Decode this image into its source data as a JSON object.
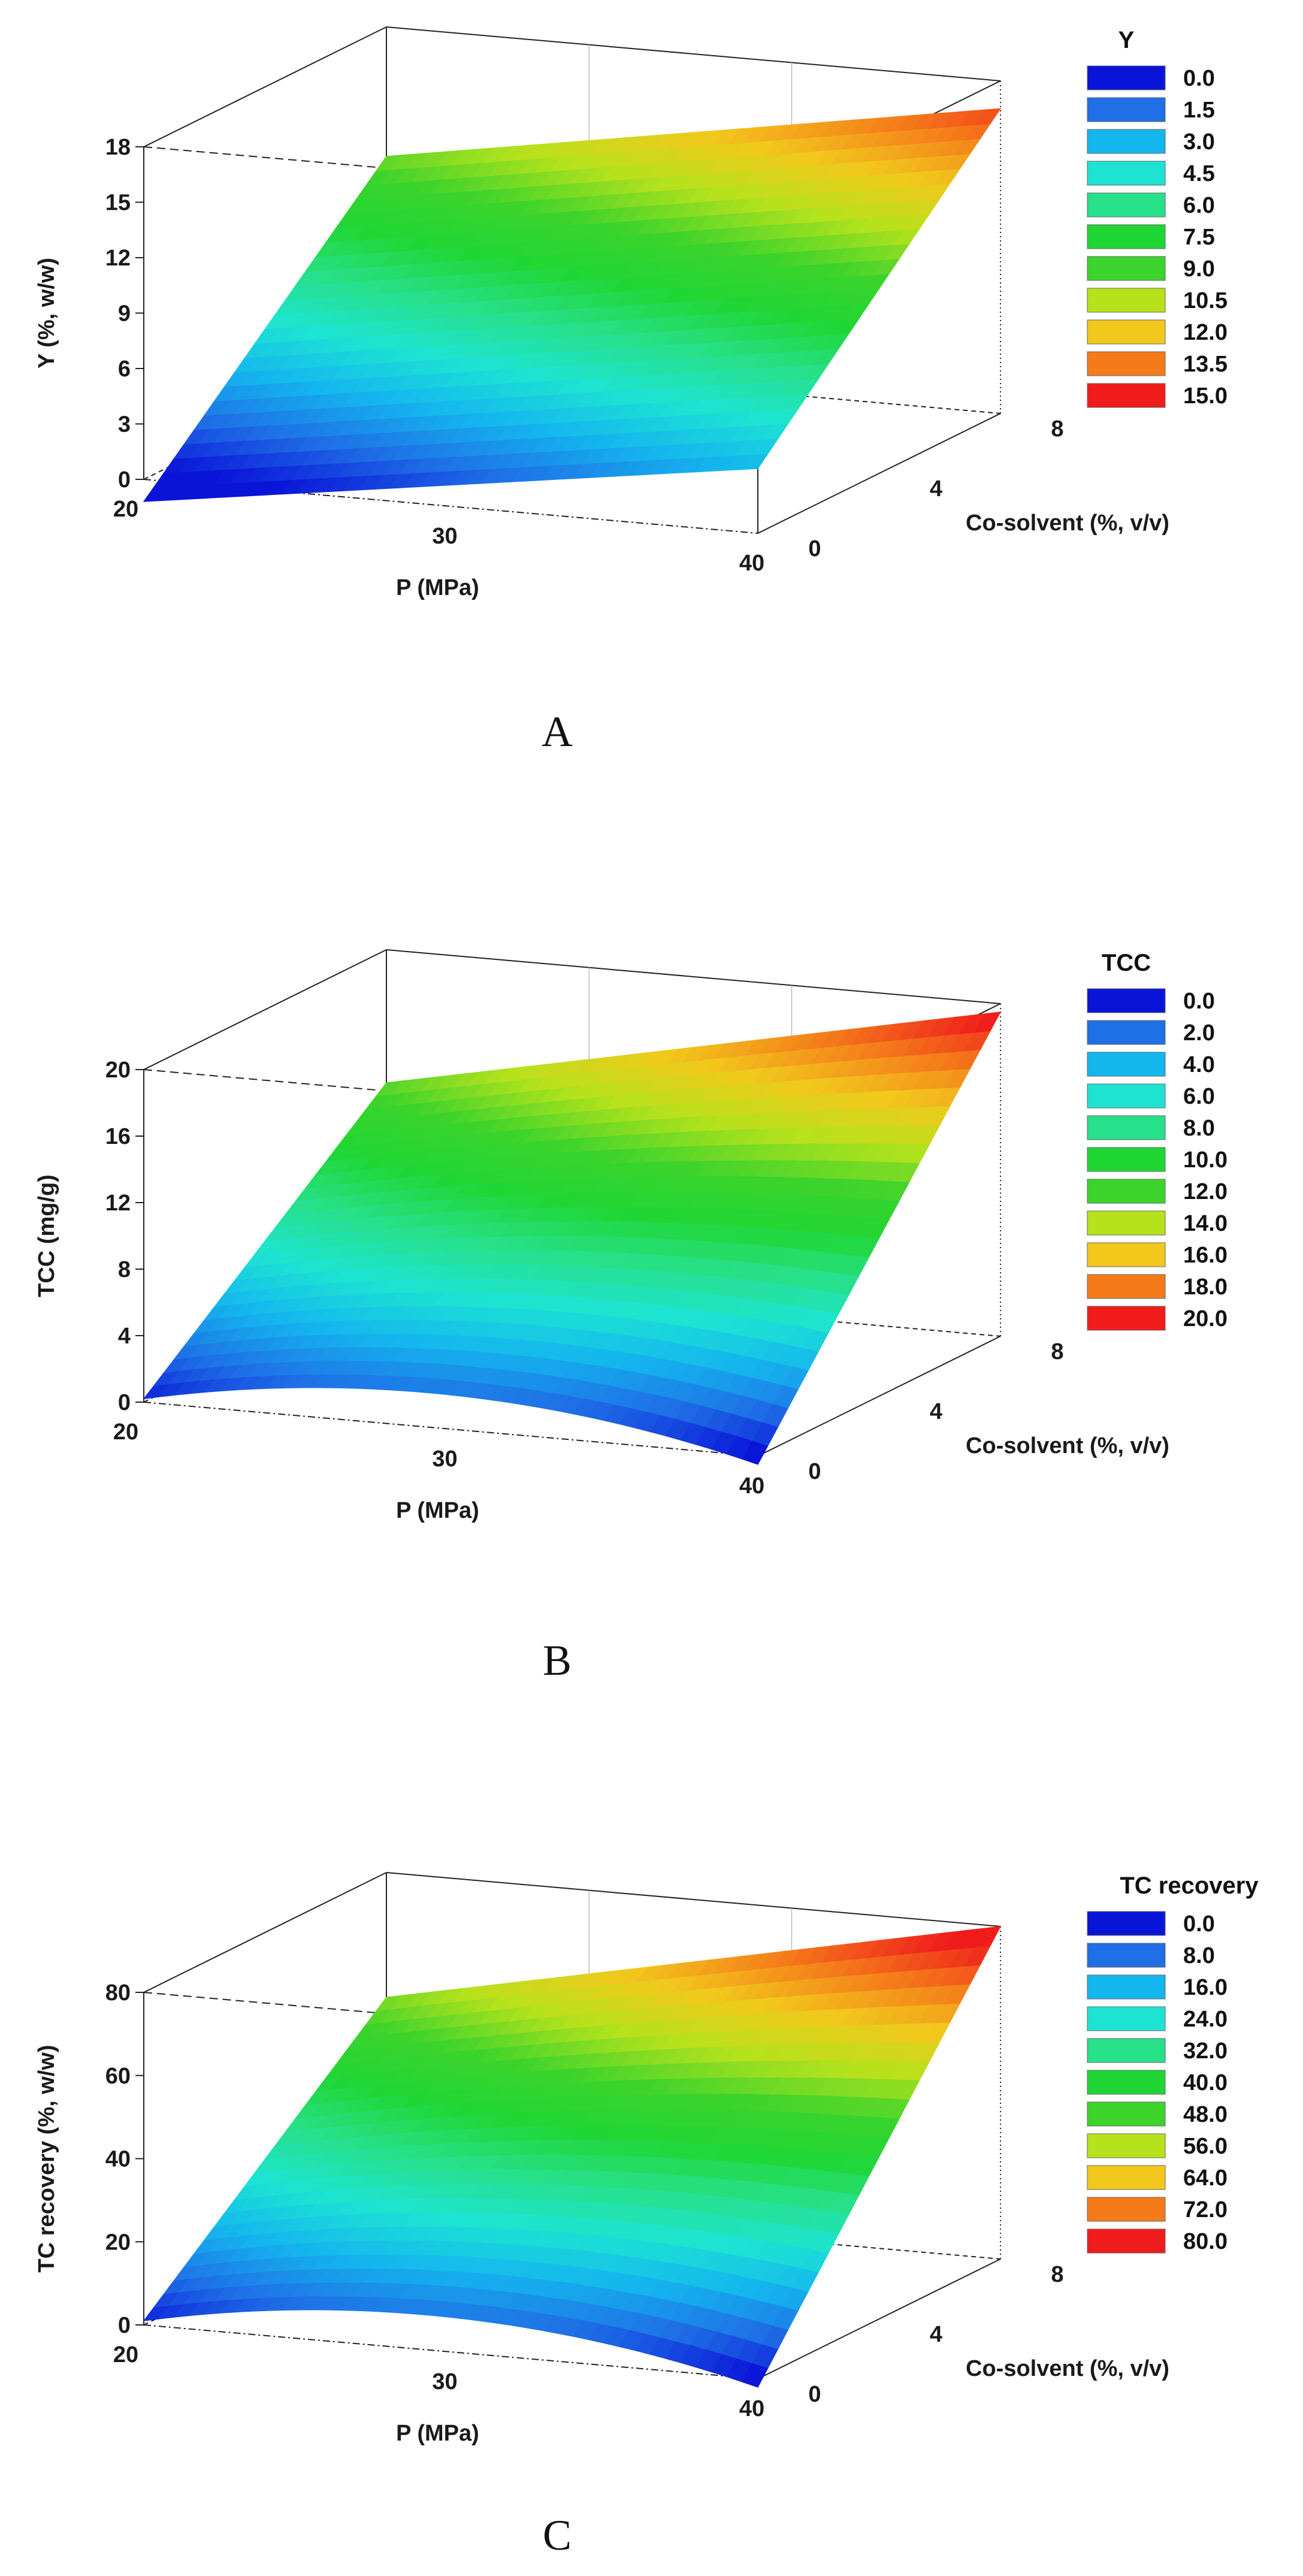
{
  "chart_data": [
    {
      "type": "surface3d",
      "panel": "A",
      "zlabel": "Y (%, w/w)",
      "xlabel": "P (MPa)",
      "ylabel": "Co-solvent (%, v/v)",
      "x_ticks": [
        "20",
        "30",
        "40"
      ],
      "y_ticks": [
        "0",
        "4",
        "8"
      ],
      "z_ticks": [
        "0",
        "3",
        "6",
        "9",
        "12",
        "15",
        "18"
      ],
      "xlim": [
        20,
        40
      ],
      "ylim": [
        0,
        8
      ],
      "zlim": [
        0,
        18
      ],
      "surface_corners": {
        "p20_c0": -1.2,
        "p40_c0": 3.5,
        "p20_c8": 11.0,
        "p40_c8": 16.5
      },
      "legend_title": "Y",
      "legend_values": [
        "0.0",
        "1.5",
        "3.0",
        "4.5",
        "6.0",
        "7.5",
        "9.0",
        "10.5",
        "12.0",
        "13.5",
        "15.0"
      ]
    },
    {
      "type": "surface3d",
      "panel": "B",
      "zlabel": "TCC (mg/g)",
      "xlabel": "P (MPa)",
      "ylabel": "Co-solvent (%, v/v)",
      "x_ticks": [
        "20",
        "30",
        "40"
      ],
      "y_ticks": [
        "0",
        "4",
        "8"
      ],
      "z_ticks": [
        "0",
        "4",
        "8",
        "12",
        "16",
        "20"
      ],
      "xlim": [
        20,
        40
      ],
      "ylim": [
        0,
        8
      ],
      "zlim": [
        0,
        20
      ],
      "surface_corners": {
        "p20_c0": 0.2,
        "p40_c0": -0.5,
        "p20_c8": 12.0,
        "p40_c8": 19.5
      },
      "legend_title": "TCC",
      "legend_values": [
        "0.0",
        "2.0",
        "4.0",
        "6.0",
        "8.0",
        "10.0",
        "12.0",
        "14.0",
        "16.0",
        "18.0",
        "20.0"
      ]
    },
    {
      "type": "surface3d",
      "panel": "C",
      "zlabel": "TC recovery (%, w/w)",
      "xlabel": "P (MPa)",
      "ylabel": "Co-solvent (%, v/v)",
      "x_ticks": [
        "20",
        "30",
        "40"
      ],
      "y_ticks": [
        "0",
        "4",
        "8"
      ],
      "z_ticks": [
        "0",
        "20",
        "40",
        "60",
        "80"
      ],
      "xlim": [
        20,
        40
      ],
      "ylim": [
        0,
        8
      ],
      "zlim": [
        0,
        80
      ],
      "surface_corners": {
        "p20_c0": 1.0,
        "p40_c0": -2.0,
        "p20_c8": 50.0,
        "p40_c8": 80.0
      },
      "legend_title": "TC recovery",
      "legend_values": [
        "0.0",
        "8.0",
        "16.0",
        "24.0",
        "32.0",
        "40.0",
        "48.0",
        "56.0",
        "64.0",
        "72.0",
        "80.0"
      ]
    }
  ],
  "legend_colors": [
    "#0a14d8",
    "#1f6fe6",
    "#14b6ee",
    "#1de4d2",
    "#27e08a",
    "#20d634",
    "#3bd32c",
    "#b6e21c",
    "#f2c81c",
    "#f47a1a",
    "#f01c1c"
  ]
}
